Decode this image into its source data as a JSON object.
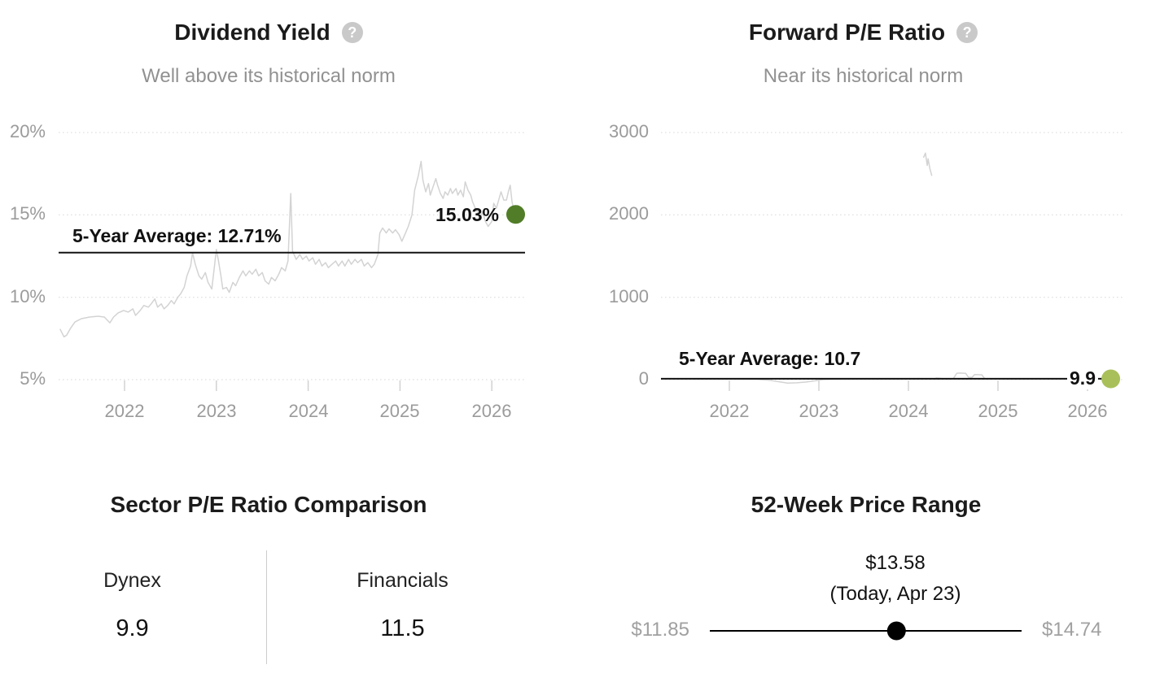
{
  "icons": {
    "help": "?"
  },
  "colors": {
    "grid": "#d8d8d8",
    "tick": "#d2d2d2",
    "avg_line": "#121212",
    "marker_black": "#000000",
    "dividend_dot": "#517d28",
    "forward_pe_dot": "#a9c05a"
  },
  "chart_data": [
    {
      "type": "line",
      "id": "dividend-yield",
      "title": "Dividend Yield",
      "subtitle": "Well above its historical norm",
      "y_unit": "%",
      "xlim": [
        2021.3,
        2026.45
      ],
      "ylim": [
        4,
        21
      ],
      "grid": "dotted-horizontal",
      "legend": "none",
      "series_color": "#d3d3d3",
      "dot_color": "#517d28",
      "y_ticks": [
        {
          "value": 20,
          "label": "20%"
        },
        {
          "value": 15,
          "label": "15%"
        },
        {
          "value": 10,
          "label": "10%"
        },
        {
          "value": 5,
          "label": "5%"
        }
      ],
      "x_ticks": [
        {
          "value": 2022,
          "label": "2022"
        },
        {
          "value": 2023,
          "label": "2023"
        },
        {
          "value": 2024,
          "label": "2024"
        },
        {
          "value": 2025,
          "label": "2025"
        },
        {
          "value": 2026,
          "label": "2026"
        }
      ],
      "average": {
        "label": "5-Year Average: 12.71%",
        "value": 12.71
      },
      "current": {
        "label": "15.03%",
        "value": 15.03
      },
      "series": [
        [
          2021.3,
          8.05
        ],
        [
          2021.34,
          7.6
        ],
        [
          2021.37,
          7.7
        ],
        [
          2021.41,
          8.1
        ],
        [
          2021.46,
          8.5
        ],
        [
          2021.53,
          8.7
        ],
        [
          2021.62,
          8.8
        ],
        [
          2021.71,
          8.85
        ],
        [
          2021.78,
          8.8
        ],
        [
          2021.84,
          8.45
        ],
        [
          2021.88,
          8.8
        ],
        [
          2021.93,
          9.05
        ],
        [
          2021.99,
          9.2
        ],
        [
          2022.04,
          9.1
        ],
        [
          2022.09,
          9.3
        ],
        [
          2022.12,
          8.9
        ],
        [
          2022.17,
          9.2
        ],
        [
          2022.21,
          9.5
        ],
        [
          2022.26,
          9.4
        ],
        [
          2022.29,
          9.6
        ],
        [
          2022.33,
          9.9
        ],
        [
          2022.36,
          9.4
        ],
        [
          2022.4,
          9.6
        ],
        [
          2022.43,
          9.3
        ],
        [
          2022.47,
          9.5
        ],
        [
          2022.51,
          9.8
        ],
        [
          2022.54,
          9.6
        ],
        [
          2022.58,
          10.0
        ],
        [
          2022.61,
          10.2
        ],
        [
          2022.65,
          10.6
        ],
        [
          2022.68,
          11.3
        ],
        [
          2022.72,
          11.9
        ],
        [
          2022.74,
          12.7
        ],
        [
          2022.77,
          12.0
        ],
        [
          2022.81,
          11.3
        ],
        [
          2022.84,
          11.1
        ],
        [
          2022.88,
          11.5
        ],
        [
          2022.91,
          10.9
        ],
        [
          2022.95,
          10.5
        ],
        [
          2022.98,
          11.9
        ],
        [
          2023.0,
          12.9
        ],
        [
          2023.02,
          12.3
        ],
        [
          2023.05,
          11.3
        ],
        [
          2023.07,
          10.5
        ],
        [
          2023.11,
          10.6
        ],
        [
          2023.14,
          10.3
        ],
        [
          2023.18,
          10.9
        ],
        [
          2023.21,
          10.7
        ],
        [
          2023.25,
          11.2
        ],
        [
          2023.29,
          11.6
        ],
        [
          2023.32,
          11.3
        ],
        [
          2023.36,
          11.6
        ],
        [
          2023.39,
          11.4
        ],
        [
          2023.43,
          11.7
        ],
        [
          2023.46,
          11.3
        ],
        [
          2023.5,
          11.5
        ],
        [
          2023.53,
          11.0
        ],
        [
          2023.57,
          10.8
        ],
        [
          2023.6,
          11.2
        ],
        [
          2023.64,
          11.0
        ],
        [
          2023.68,
          11.4
        ],
        [
          2023.71,
          11.8
        ],
        [
          2023.75,
          11.6
        ],
        [
          2023.78,
          12.2
        ],
        [
          2023.81,
          16.3
        ],
        [
          2023.83,
          12.8
        ],
        [
          2023.87,
          12.3
        ],
        [
          2023.91,
          12.6
        ],
        [
          2023.94,
          12.3
        ],
        [
          2023.98,
          12.5
        ],
        [
          2024.01,
          12.2
        ],
        [
          2024.05,
          12.4
        ],
        [
          2024.08,
          12.0
        ],
        [
          2024.12,
          12.3
        ],
        [
          2024.15,
          11.9
        ],
        [
          2024.19,
          12.1
        ],
        [
          2024.22,
          11.8
        ],
        [
          2024.26,
          12.0
        ],
        [
          2024.3,
          12.2
        ],
        [
          2024.33,
          11.9
        ],
        [
          2024.37,
          12.2
        ],
        [
          2024.4,
          11.9
        ],
        [
          2024.44,
          12.3
        ],
        [
          2024.47,
          12.0
        ],
        [
          2024.51,
          12.3
        ],
        [
          2024.54,
          12.1
        ],
        [
          2024.58,
          12.3
        ],
        [
          2024.61,
          11.9
        ],
        [
          2024.65,
          12.1
        ],
        [
          2024.69,
          11.8
        ],
        [
          2024.72,
          12.0
        ],
        [
          2024.76,
          12.6
        ],
        [
          2024.78,
          13.9
        ],
        [
          2024.81,
          14.2
        ],
        [
          2024.85,
          13.9
        ],
        [
          2024.88,
          14.15
        ],
        [
          2024.92,
          13.9
        ],
        [
          2024.95,
          14.1
        ],
        [
          2024.99,
          13.8
        ],
        [
          2025.02,
          13.4
        ],
        [
          2025.06,
          13.9
        ],
        [
          2025.09,
          14.3
        ],
        [
          2025.13,
          15.0
        ],
        [
          2025.16,
          16.5
        ],
        [
          2025.2,
          17.4
        ],
        [
          2025.23,
          18.25
        ],
        [
          2025.25,
          17.1
        ],
        [
          2025.28,
          16.4
        ],
        [
          2025.31,
          16.9
        ],
        [
          2025.33,
          16.2
        ],
        [
          2025.36,
          16.7
        ],
        [
          2025.39,
          17.2
        ],
        [
          2025.41,
          16.8
        ],
        [
          2025.44,
          16.3
        ],
        [
          2025.47,
          16.0
        ],
        [
          2025.49,
          16.4
        ],
        [
          2025.52,
          16.2
        ],
        [
          2025.55,
          16.6
        ],
        [
          2025.57,
          16.3
        ],
        [
          2025.61,
          16.6
        ],
        [
          2025.63,
          16.2
        ],
        [
          2025.66,
          16.5
        ],
        [
          2025.69,
          16.1
        ],
        [
          2025.71,
          17.0
        ],
        [
          2025.74,
          16.5
        ],
        [
          2025.77,
          16.2
        ],
        [
          2025.79,
          15.8
        ],
        [
          2025.82,
          15.4
        ],
        [
          2025.85,
          15.1
        ],
        [
          2025.87,
          14.8
        ],
        [
          2025.9,
          15.2
        ],
        [
          2025.93,
          14.6
        ],
        [
          2025.96,
          14.3
        ],
        [
          2026.0,
          14.6
        ],
        [
          2026.02,
          15.7
        ],
        [
          2026.05,
          15.4
        ],
        [
          2026.08,
          16.0
        ],
        [
          2026.1,
          16.4
        ],
        [
          2026.13,
          15.9
        ],
        [
          2026.16,
          15.9
        ],
        [
          2026.18,
          16.4
        ],
        [
          2026.2,
          16.8
        ],
        [
          2026.22,
          15.8
        ],
        [
          2026.24,
          15.3
        ],
        [
          2026.26,
          15.03
        ]
      ]
    },
    {
      "type": "line",
      "id": "forward-pe",
      "title": "Forward P/E Ratio",
      "subtitle": "Near its historical norm",
      "y_unit": "",
      "xlim": [
        2021.3,
        2026.45
      ],
      "ylim": [
        -60,
        3050
      ],
      "grid": "dotted-horizontal",
      "legend": "none",
      "series_color": "#d3d3d3",
      "dot_color": "#a9c05a",
      "y_ticks": [
        {
          "value": 3000,
          "label": "3000"
        },
        {
          "value": 2000,
          "label": "2000"
        },
        {
          "value": 1000,
          "label": "1000"
        },
        {
          "value": 0,
          "label": "0"
        }
      ],
      "x_ticks": [
        {
          "value": 2022,
          "label": "2022"
        },
        {
          "value": 2023,
          "label": "2023"
        },
        {
          "value": 2024,
          "label": "2024"
        },
        {
          "value": 2025,
          "label": "2025"
        },
        {
          "value": 2026,
          "label": "2026"
        }
      ],
      "average": {
        "label": "5-Year Average: 10.7",
        "value": 10.7
      },
      "current": {
        "label": "9.9",
        "value": 9.9
      },
      "series": [
        [
          2021.3,
          14
        ],
        [
          2021.5,
          10
        ],
        [
          2021.7,
          8
        ],
        [
          2021.9,
          6
        ],
        [
          2022.1,
          5
        ],
        [
          2022.3,
          2
        ],
        [
          2022.45,
          -8
        ],
        [
          2022.55,
          -25
        ],
        [
          2022.65,
          -42
        ],
        [
          2022.75,
          -38
        ],
        [
          2022.85,
          -30
        ],
        [
          2022.95,
          -15
        ],
        [
          2023.05,
          0
        ],
        [
          2023.2,
          4
        ],
        [
          2023.4,
          6
        ],
        [
          2023.6,
          7
        ],
        [
          2023.8,
          8
        ],
        [
          2024.0,
          10
        ],
        [
          2024.12,
          14
        ],
        null,
        [
          2024.17,
          2700
        ],
        [
          2024.19,
          2750
        ],
        [
          2024.21,
          2600
        ],
        [
          2024.22,
          2680
        ],
        [
          2024.24,
          2560
        ],
        [
          2024.26,
          2480
        ],
        null,
        [
          2024.31,
          20
        ],
        [
          2024.38,
          12
        ],
        [
          2024.5,
          10
        ],
        [
          2024.54,
          78
        ],
        [
          2024.58,
          80
        ],
        [
          2024.64,
          76
        ],
        [
          2024.67,
          30
        ],
        [
          2024.71,
          28
        ],
        [
          2024.74,
          62
        ],
        [
          2024.78,
          60
        ],
        [
          2024.82,
          58
        ],
        [
          2024.85,
          14
        ],
        [
          2024.95,
          11
        ],
        [
          2025.2,
          10
        ],
        [
          2025.5,
          11
        ],
        [
          2025.8,
          10
        ],
        [
          2026.0,
          10
        ],
        [
          2026.26,
          9.9
        ]
      ]
    },
    {
      "type": "table",
      "id": "sector-pe-comparison",
      "title": "Sector P/E Ratio Comparison",
      "columns": [
        {
          "label": "Dynex",
          "value": "9.9"
        },
        {
          "label": "Financials",
          "value": "11.5"
        }
      ]
    },
    {
      "type": "range",
      "id": "52-week-price-range",
      "title": "52-Week Price Range",
      "min": {
        "label": "$11.85",
        "value": 11.85
      },
      "max": {
        "label": "$14.74",
        "value": 14.74
      },
      "current": {
        "label": "$13.58",
        "value": 13.58,
        "note": "(Today, Apr 23)"
      }
    }
  ]
}
